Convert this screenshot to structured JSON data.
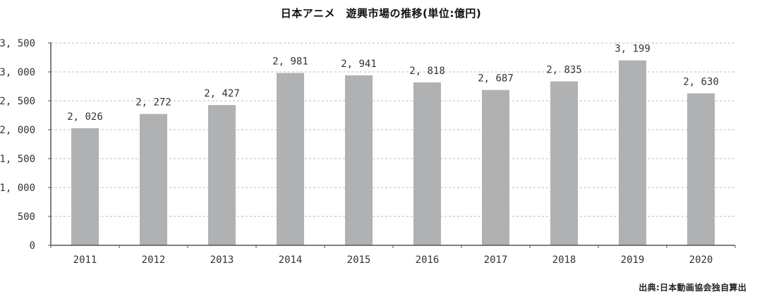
{
  "title": "日本アニメ　遊興市場の推移(単位:億円)",
  "source": "出典:日本動画協会独自算出",
  "colors": {
    "bar": "#b0b1b3",
    "axis": "#555555",
    "grid": "#bbbbbb"
  },
  "chart_data": {
    "type": "bar",
    "title": "日本アニメ　遊興市場の推移(単位:億円)",
    "categories": [
      "2011",
      "2012",
      "2013",
      "2014",
      "2015",
      "2016",
      "2017",
      "2018",
      "2019",
      "2020"
    ],
    "values": [
      2026,
      2272,
      2427,
      2981,
      2941,
      2818,
      2687,
      2835,
      3199,
      2630
    ],
    "value_labels": [
      "2, 026",
      "2, 272",
      "2, 427",
      "2, 981",
      "2, 941",
      "2, 818",
      "2, 687",
      "2, 835",
      "3, 199",
      "2, 630"
    ],
    "yticks": [
      0,
      500,
      1000,
      1500,
      2000,
      2500,
      3000,
      3500
    ],
    "ytick_labels": [
      "0",
      "500",
      "1, 000",
      "1, 500",
      "2, 000",
      "2, 500",
      "3, 000",
      "3, 500"
    ],
    "ylim": [
      0,
      3500
    ],
    "grid": true,
    "xlabel": "",
    "ylabel": ""
  }
}
